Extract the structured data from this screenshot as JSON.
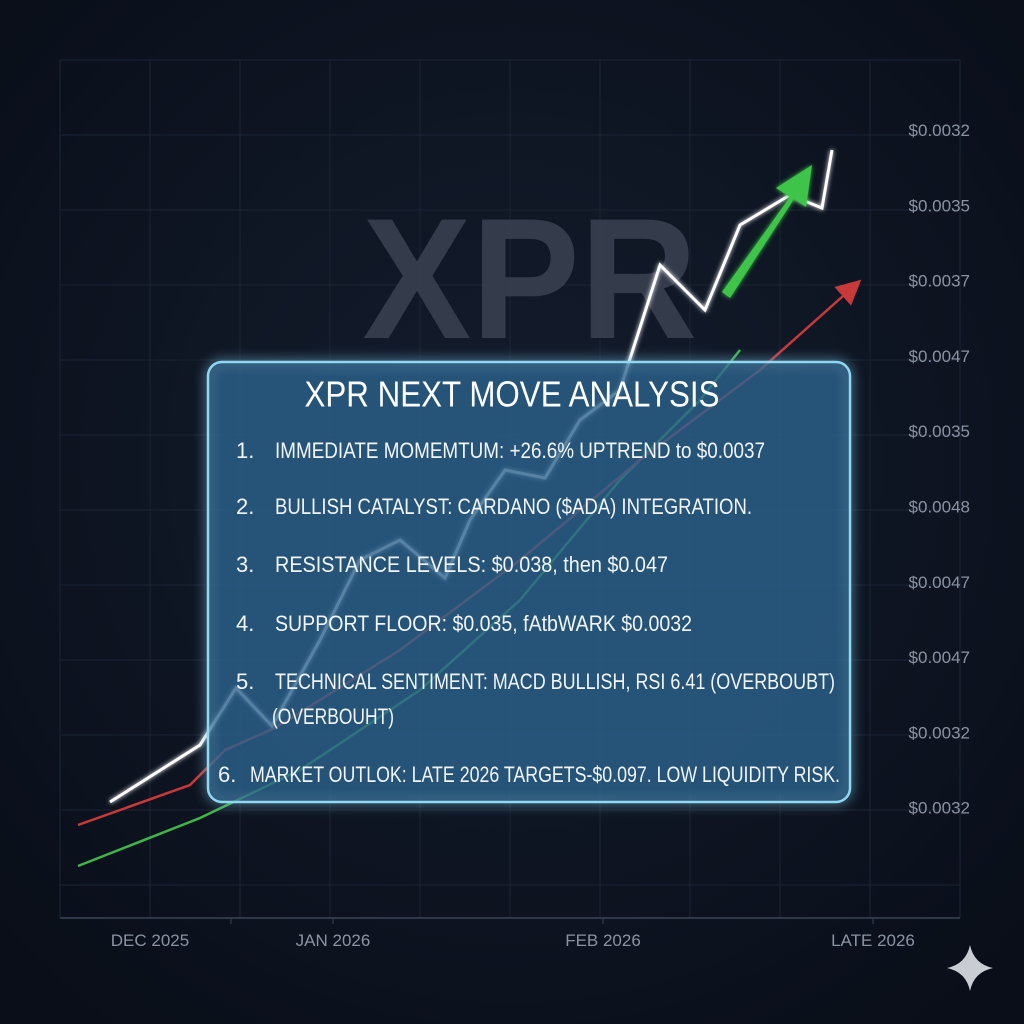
{
  "watermark": "XPR",
  "x_axis_labels": [
    "DEC 2025",
    "JAN 2026",
    "FEB 2026",
    "LATE 2026"
  ],
  "y_axis_labels": [
    "$0.0032",
    "$0.0035",
    "$0.0037",
    "$0.0047",
    "$0.0035",
    "$0.0048",
    "$0.0047",
    "$0.0047",
    "$0.0032",
    "$0.0032"
  ],
  "panel": {
    "title": "XPR NEXT MOVE ANALYSIS",
    "items": [
      {
        "number": "1.",
        "lines": [
          "IMMEDIATE MOMEMTUM: +26.6% UPTREND to $0.0037"
        ]
      },
      {
        "number": "2.",
        "lines": [
          "BULLISH CATALYST: CARDANO ($ADA) INTEGRATION."
        ]
      },
      {
        "number": "3.",
        "lines": [
          "RESISTANCE LEVELS: $0.038, then $0.047"
        ]
      },
      {
        "number": "4.",
        "lines": [
          "SUPPORT FLOOR: $0.035, fAtbWARK $0.0032"
        ]
      },
      {
        "number": "5.",
        "lines": [
          "TECHNICAL SENTIMENT: MACD BULLISH, RSI 6.41 (OVERBOUBT)",
          "(OVERBOUHT)"
        ]
      },
      {
        "number": "6.",
        "lines": [
          "MARKET OUTLOK: LATE 2026 TARGETS-$0.097. LOW LIQUIDITY RISK."
        ]
      }
    ]
  }
}
